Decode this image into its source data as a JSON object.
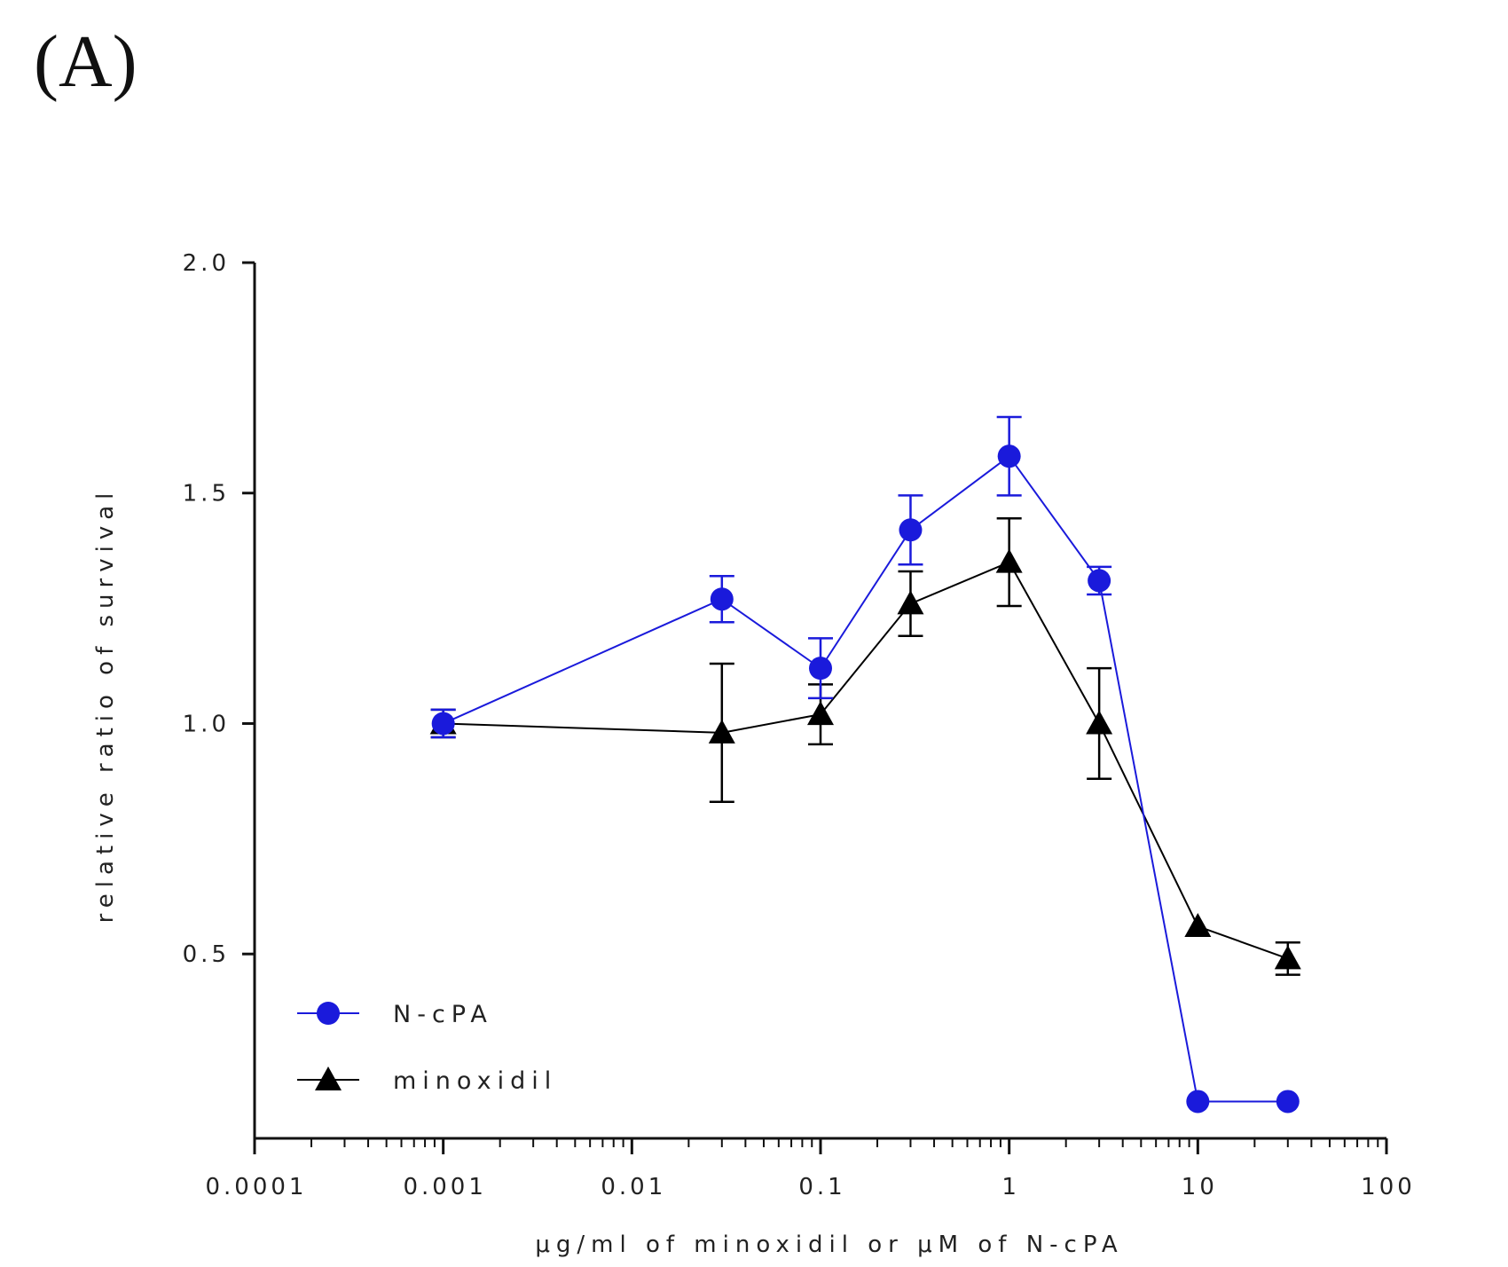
{
  "panel_label": "(A)",
  "colors": {
    "ncpa": "#1a1adb",
    "minoxidil": "#000000",
    "axis": "#111111"
  },
  "chart_data": {
    "type": "line",
    "title": "",
    "xlabel": "μg/ml of minoxidil or μM of N-cPA",
    "ylabel": "relative ratio of survival",
    "x_scale": "log",
    "xlim": [
      0.0001,
      100
    ],
    "ylim": [
      0.1,
      2.0
    ],
    "x_ticks": [
      0.0001,
      0.001,
      0.01,
      0.1,
      1,
      10,
      100
    ],
    "x_tick_labels": [
      "0.0001",
      "0.001",
      "0.01",
      "0.1",
      "1",
      "10",
      "100"
    ],
    "y_ticks": [
      0.5,
      1.0,
      1.5,
      2.0
    ],
    "y_tick_labels": [
      "0.5",
      "1.0",
      "1.5",
      "2.0"
    ],
    "grid": false,
    "legend_position": "bottom-left",
    "series": [
      {
        "name": "N-cPA",
        "marker": "circle",
        "color": "#1a1adb",
        "x": [
          0.001,
          0.03,
          0.1,
          0.3,
          1,
          3,
          10,
          30
        ],
        "y": [
          1.0,
          1.27,
          1.12,
          1.42,
          1.58,
          1.31,
          0.18,
          0.18
        ],
        "err": [
          0.03,
          0.05,
          0.065,
          0.075,
          0.085,
          0.03,
          0,
          0
        ]
      },
      {
        "name": "minoxidil",
        "marker": "triangle",
        "color": "#000000",
        "x": [
          0.001,
          0.03,
          0.1,
          0.3,
          1,
          3,
          10,
          30
        ],
        "y": [
          1.0,
          0.98,
          1.02,
          1.26,
          1.35,
          1.0,
          0.56,
          0.49
        ],
        "err": [
          0.03,
          0.15,
          0.065,
          0.07,
          0.095,
          0.12,
          0,
          0.035
        ]
      }
    ]
  }
}
